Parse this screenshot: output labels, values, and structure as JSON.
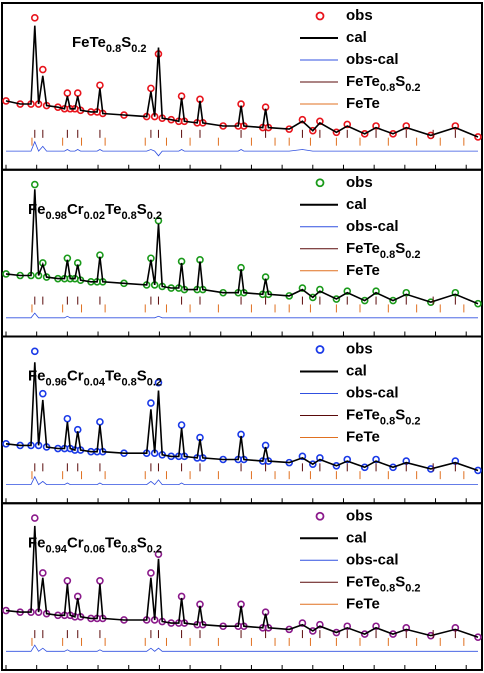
{
  "chart_data": [
    {
      "type": "line",
      "title": "FeTe0.8S0.2",
      "xlim": [
        0,
        100
      ],
      "ylim": [
        0,
        100
      ],
      "xticks": [
        0,
        6.5,
        13,
        19.5,
        26,
        32.5,
        39,
        45.5,
        52,
        58.5,
        65,
        71.5,
        78,
        84.5,
        91,
        97.5
      ],
      "x": [
        0,
        3,
        5.3,
        6.1,
        6.9,
        7.8,
        8.6,
        11,
        12.4,
        13,
        13.6,
        14.6,
        15.2,
        15.8,
        18,
        19.3,
        19.9,
        20.5,
        25,
        29.8,
        30.7,
        31.5,
        32.3,
        33.1,
        35,
        36.6,
        37.2,
        37.8,
        40.5,
        41.1,
        41.7,
        46,
        49.2,
        49.8,
        50.4,
        54.4,
        55,
        55.6,
        60,
        62.8,
        65,
        66.5,
        70,
        72.3,
        76,
        78.4,
        82,
        84.8,
        90,
        95.2,
        100
      ],
      "series": [
        {
          "name": "obs",
          "color": "#e8141c",
          "marker": "circle",
          "values": [
            42,
            40,
            40,
            95,
            40,
            62,
            39,
            38,
            37,
            47,
            37,
            37,
            47,
            36,
            35,
            35,
            52,
            34,
            33,
            32,
            50,
            32,
            72,
            31,
            30,
            29,
            45,
            29,
            28,
            43,
            28,
            26,
            26,
            40,
            26,
            25,
            38,
            25,
            24,
            30,
            23,
            29,
            22,
            27,
            21,
            26,
            21,
            26,
            20,
            26,
            19
          ]
        },
        {
          "name": "cal",
          "color": "#000000",
          "values": [
            42,
            40,
            40,
            90,
            40,
            58,
            39,
            38,
            37,
            45,
            37,
            37,
            45,
            36,
            35,
            35,
            50,
            34,
            33,
            32,
            48,
            32,
            76,
            31,
            30,
            29,
            44,
            29,
            28,
            42,
            28,
            26,
            26,
            39,
            26,
            25,
            37,
            25,
            24,
            29,
            23,
            28,
            22,
            26,
            21,
            25,
            21,
            25,
            20,
            25,
            19
          ]
        },
        {
          "name": "obs-cal",
          "color": "#3050e0",
          "values": [
            10,
            10,
            10,
            16,
            10,
            13,
            10,
            10,
            10,
            11,
            10,
            10,
            11,
            10,
            10,
            10,
            11,
            10,
            10,
            10,
            11,
            10,
            7,
            10,
            10,
            10,
            11,
            10,
            10,
            10,
            10,
            10,
            10,
            11,
            10,
            10,
            10,
            10,
            10,
            11,
            10,
            10,
            10,
            10,
            10,
            10,
            10,
            10,
            10,
            10,
            10
          ]
        },
        {
          "name": "FeTe0.8S0.2",
          "color": "#5a0a0a",
          "y": 21,
          "x": [
            6.1,
            7.8,
            13,
            15.2,
            19.9,
            30.7,
            32.3,
            37.2,
            41.1,
            49.8,
            55,
            62.8,
            66.5,
            72.3,
            78.4,
            84.8,
            90.5,
            95.2
          ]
        },
        {
          "name": "FeTe",
          "color": "#e07020",
          "y": 16,
          "x": [
            5.5,
            12,
            16,
            21,
            29.5,
            34,
            39,
            45,
            52,
            57,
            60,
            64.5,
            70,
            75,
            81,
            87,
            92,
            97
          ]
        }
      ]
    },
    {
      "type": "line",
      "title": "Fe0.98Cr0.02Te0.8S0.2",
      "xlim": [
        0,
        100
      ],
      "ylim": [
        0,
        100
      ],
      "xticks": [
        0,
        6.5,
        13,
        19.5,
        26,
        32.5,
        39,
        45.5,
        52,
        58.5,
        65,
        71.5,
        78,
        84.5,
        91,
        97.5
      ],
      "x": [
        0,
        3,
        5.3,
        6.1,
        6.9,
        7.8,
        8.6,
        11,
        12.4,
        13,
        13.6,
        14.6,
        15.2,
        15.8,
        18,
        19.3,
        19.9,
        20.5,
        25,
        29.8,
        30.7,
        31.5,
        32.3,
        33.1,
        35,
        36.6,
        37.2,
        37.8,
        40.5,
        41.1,
        41.7,
        46,
        49.2,
        49.8,
        50.4,
        54.4,
        55,
        55.6,
        60,
        62.8,
        65,
        66.5,
        70,
        72.3,
        76,
        78.4,
        82,
        84.8,
        90,
        95.2,
        100
      ],
      "series": [
        {
          "name": "obs",
          "color": "#1a9a1a",
          "marker": "circle",
          "values": [
            38,
            37,
            37,
            95,
            37,
            45,
            36,
            35,
            35,
            48,
            35,
            35,
            45,
            34,
            33,
            33,
            50,
            33,
            32,
            31,
            48,
            31,
            72,
            30,
            29,
            29,
            46,
            28,
            28,
            47,
            28,
            26,
            26,
            42,
            26,
            25,
            36,
            25,
            24,
            29,
            23,
            28,
            22,
            27,
            21,
            27,
            21,
            26,
            20,
            26,
            19
          ]
        },
        {
          "name": "cal",
          "color": "#000000",
          "values": [
            38,
            37,
            37,
            92,
            37,
            44,
            36,
            35,
            35,
            47,
            35,
            35,
            44,
            34,
            33,
            33,
            49,
            33,
            32,
            31,
            47,
            31,
            70,
            30,
            29,
            29,
            45,
            28,
            28,
            46,
            28,
            26,
            26,
            41,
            26,
            25,
            35,
            25,
            24,
            28,
            23,
            27,
            22,
            26,
            21,
            26,
            21,
            25,
            20,
            25,
            19
          ]
        },
        {
          "name": "obs-cal",
          "color": "#3050e0",
          "values": [
            10,
            10,
            10,
            13,
            10,
            10,
            10,
            10,
            10,
            11,
            10,
            10,
            10,
            10,
            10,
            10,
            10,
            10,
            10,
            10,
            10,
            10,
            11,
            10,
            10,
            10,
            10,
            10,
            10,
            10,
            10,
            10,
            10,
            10,
            10,
            10,
            10,
            10,
            10,
            10,
            10,
            10,
            10,
            10,
            10,
            10,
            10,
            10,
            10,
            10,
            10
          ]
        },
        {
          "name": "FeTe0.8S0.2",
          "color": "#5a0a0a",
          "y": 21,
          "x": [
            6.1,
            7.8,
            13,
            15.2,
            19.9,
            30.7,
            32.3,
            37.2,
            41.1,
            49.8,
            55,
            62.8,
            66.5,
            72.3,
            78.4,
            84.8,
            90.5,
            95.2
          ]
        },
        {
          "name": "FeTe",
          "color": "#e07020",
          "y": 16,
          "x": [
            5.5,
            12,
            16,
            21,
            29.5,
            34,
            39,
            45,
            52,
            57,
            60,
            64.5,
            70,
            75,
            81,
            87,
            92,
            97
          ]
        }
      ]
    },
    {
      "type": "line",
      "title": "Fe0.96Cr0.04Te0.8S0.2",
      "xlim": [
        0,
        100
      ],
      "ylim": [
        0,
        100
      ],
      "xticks": [
        0,
        6.5,
        13,
        19.5,
        26,
        32.5,
        39,
        45.5,
        52,
        58.5,
        65,
        71.5,
        78,
        84.5,
        91,
        97.5
      ],
      "x": [
        0,
        3,
        5.3,
        6.1,
        6.9,
        7.8,
        8.6,
        11,
        12.4,
        13,
        13.6,
        14.6,
        15.2,
        15.8,
        18,
        19.3,
        19.9,
        20.5,
        25,
        29.8,
        30.7,
        31.5,
        32.3,
        33.1,
        35,
        36.6,
        37.2,
        37.8,
        40.5,
        41.1,
        41.7,
        46,
        49.2,
        49.8,
        50.4,
        54.4,
        55,
        55.6,
        60,
        62.8,
        65,
        66.5,
        70,
        72.3,
        76,
        78.4,
        82,
        84.8,
        90,
        95.2,
        100
      ],
      "series": [
        {
          "name": "obs",
          "color": "#1a3ae8",
          "marker": "circle",
          "values": [
            36,
            35,
            35,
            95,
            35,
            68,
            34,
            33,
            33,
            52,
            33,
            32,
            45,
            32,
            31,
            31,
            50,
            31,
            30,
            30,
            62,
            30,
            75,
            29,
            28,
            28,
            48,
            28,
            27,
            40,
            27,
            26,
            26,
            42,
            26,
            25,
            35,
            25,
            24,
            28,
            23,
            27,
            22,
            26,
            21,
            26,
            21,
            25,
            20,
            25,
            19
          ]
        },
        {
          "name": "cal",
          "color": "#000000",
          "values": [
            36,
            35,
            35,
            88,
            35,
            64,
            34,
            33,
            33,
            50,
            33,
            32,
            44,
            32,
            31,
            31,
            48,
            31,
            30,
            30,
            58,
            30,
            70,
            29,
            28,
            28,
            46,
            28,
            27,
            39,
            27,
            26,
            26,
            41,
            26,
            25,
            34,
            25,
            24,
            27,
            23,
            26,
            22,
            25,
            21,
            25,
            21,
            24,
            20,
            24,
            19
          ]
        },
        {
          "name": "obs-cal",
          "color": "#3050e0",
          "values": [
            10,
            10,
            10,
            15,
            10,
            12,
            10,
            10,
            10,
            11,
            10,
            10,
            10,
            10,
            10,
            10,
            11,
            10,
            10,
            10,
            12,
            10,
            13,
            10,
            10,
            10,
            11,
            10,
            10,
            10,
            10,
            10,
            10,
            10,
            10,
            10,
            10,
            10,
            10,
            10,
            10,
            10,
            10,
            10,
            10,
            10,
            10,
            10,
            10,
            10,
            10
          ]
        },
        {
          "name": "FeTe0.8S0.2",
          "color": "#5a0a0a",
          "y": 21,
          "x": [
            6.1,
            7.8,
            13,
            15.2,
            19.9,
            30.7,
            32.3,
            37.2,
            41.1,
            49.8,
            55,
            62.8,
            66.5,
            72.3,
            78.4,
            84.8,
            90.5,
            95.2
          ]
        },
        {
          "name": "FeTe",
          "color": "#e07020",
          "y": 16,
          "x": [
            5.5,
            12,
            16,
            21,
            29.5,
            34,
            39,
            45,
            52,
            57,
            60,
            64.5,
            70,
            75,
            81,
            87,
            92,
            97
          ]
        }
      ]
    },
    {
      "type": "line",
      "title": "Fe0.94Cr0.06Te0.8S0.2",
      "xlim": [
        0,
        100
      ],
      "ylim": [
        0,
        100
      ],
      "xticks": [
        0,
        6.5,
        13,
        19.5,
        26,
        32.5,
        39,
        45.5,
        52,
        58.5,
        65,
        71.5,
        78,
        84.5,
        91,
        97.5
      ],
      "x": [
        0,
        3,
        5.3,
        6.1,
        6.9,
        7.8,
        8.6,
        11,
        12.4,
        13,
        13.6,
        14.6,
        15.2,
        15.8,
        18,
        19.3,
        19.9,
        20.5,
        25,
        29.8,
        30.7,
        31.5,
        32.3,
        33.1,
        35,
        36.6,
        37.2,
        37.8,
        40.5,
        41.1,
        41.7,
        46,
        49.2,
        49.8,
        50.4,
        54.4,
        55,
        55.6,
        60,
        62.8,
        65,
        66.5,
        70,
        72.3,
        76,
        78.4,
        82,
        84.8,
        90,
        95.2,
        100
      ],
      "series": [
        {
          "name": "obs",
          "color": "#8b1a8b",
          "marker": "circle",
          "values": [
            36,
            35,
            35,
            95,
            35,
            60,
            34,
            33,
            33,
            55,
            33,
            32,
            45,
            32,
            31,
            31,
            55,
            31,
            30,
            30,
            60,
            30,
            72,
            29,
            28,
            28,
            45,
            28,
            27,
            40,
            27,
            26,
            26,
            40,
            26,
            25,
            35,
            25,
            24,
            28,
            23,
            27,
            22,
            26,
            21,
            26,
            21,
            25,
            20,
            25,
            19
          ]
        },
        {
          "name": "cal",
          "color": "#000000",
          "values": [
            36,
            35,
            35,
            90,
            35,
            57,
            34,
            33,
            33,
            53,
            33,
            32,
            44,
            32,
            31,
            31,
            53,
            31,
            30,
            30,
            57,
            30,
            69,
            29,
            28,
            28,
            44,
            28,
            27,
            39,
            27,
            26,
            26,
            39,
            26,
            25,
            34,
            25,
            24,
            27,
            23,
            26,
            22,
            25,
            21,
            25,
            21,
            24,
            20,
            24,
            19
          ]
        },
        {
          "name": "obs-cal",
          "color": "#3050e0",
          "values": [
            10,
            10,
            10,
            14,
            10,
            12,
            10,
            10,
            10,
            11,
            10,
            10,
            10,
            10,
            10,
            10,
            11,
            10,
            10,
            10,
            12,
            10,
            12,
            10,
            10,
            10,
            10,
            10,
            10,
            10,
            10,
            10,
            10,
            10,
            10,
            10,
            10,
            10,
            10,
            10,
            10,
            10,
            10,
            10,
            10,
            10,
            10,
            10,
            10,
            10,
            10
          ]
        },
        {
          "name": "FeTe0.8S0.2",
          "color": "#5a0a0a",
          "y": 21,
          "x": [
            6.1,
            7.8,
            13,
            15.2,
            19.9,
            30.7,
            32.3,
            37.2,
            41.1,
            49.8,
            55,
            62.8,
            66.5,
            72.3,
            78.4,
            84.8,
            90.5,
            95.2
          ]
        },
        {
          "name": "FeTe",
          "color": "#e07020",
          "y": 16,
          "x": [
            5.5,
            12,
            16,
            21,
            29.5,
            34,
            39,
            45,
            52,
            57,
            60,
            64.5,
            70,
            75,
            81,
            87,
            92,
            97
          ]
        }
      ]
    }
  ]
}
